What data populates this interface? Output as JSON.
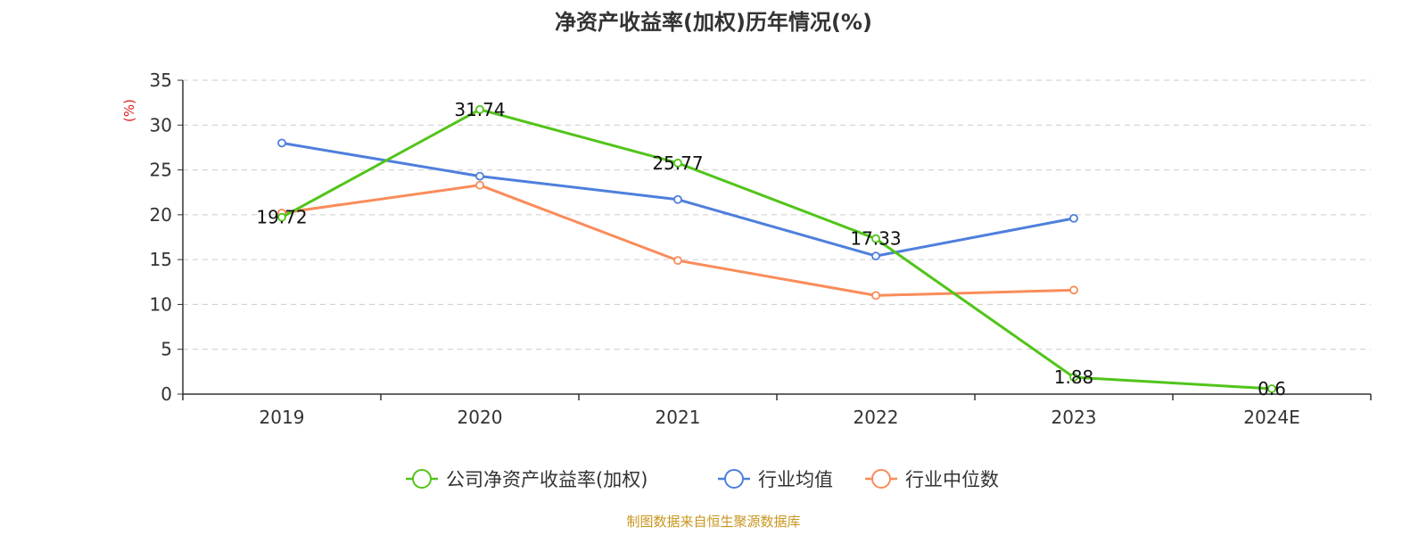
{
  "chart_data": {
    "type": "line",
    "title": "净资产收益率(加权)历年情况(%)",
    "ylabel": "(%)",
    "xlabel": "",
    "categories": [
      "2019",
      "2020",
      "2021",
      "2022",
      "2023",
      "2024E"
    ],
    "ylim": [
      0,
      35
    ],
    "yticks": [
      "0",
      "5",
      "10",
      "15",
      "20",
      "25",
      "30",
      "35"
    ],
    "grid": true,
    "legend_position": "bottom",
    "series": [
      {
        "name": "公司净资产收益率(加权)",
        "color": "#52c41a",
        "values": [
          19.72,
          31.74,
          25.77,
          17.33,
          1.88,
          0.6
        ],
        "labels": [
          "19.72",
          "31.74",
          "25.77",
          "17.33",
          "1.88",
          "0.6"
        ]
      },
      {
        "name": "行业均值",
        "color": "#4e7fdc",
        "values": [
          28.0,
          24.3,
          21.7,
          15.4,
          19.6,
          null
        ]
      },
      {
        "name": "行业中位数",
        "color": "#f98c5a",
        "values": [
          20.2,
          23.3,
          14.9,
          11.0,
          11.6,
          null
        ]
      }
    ],
    "source": "制图数据来自恒生聚源数据库"
  }
}
